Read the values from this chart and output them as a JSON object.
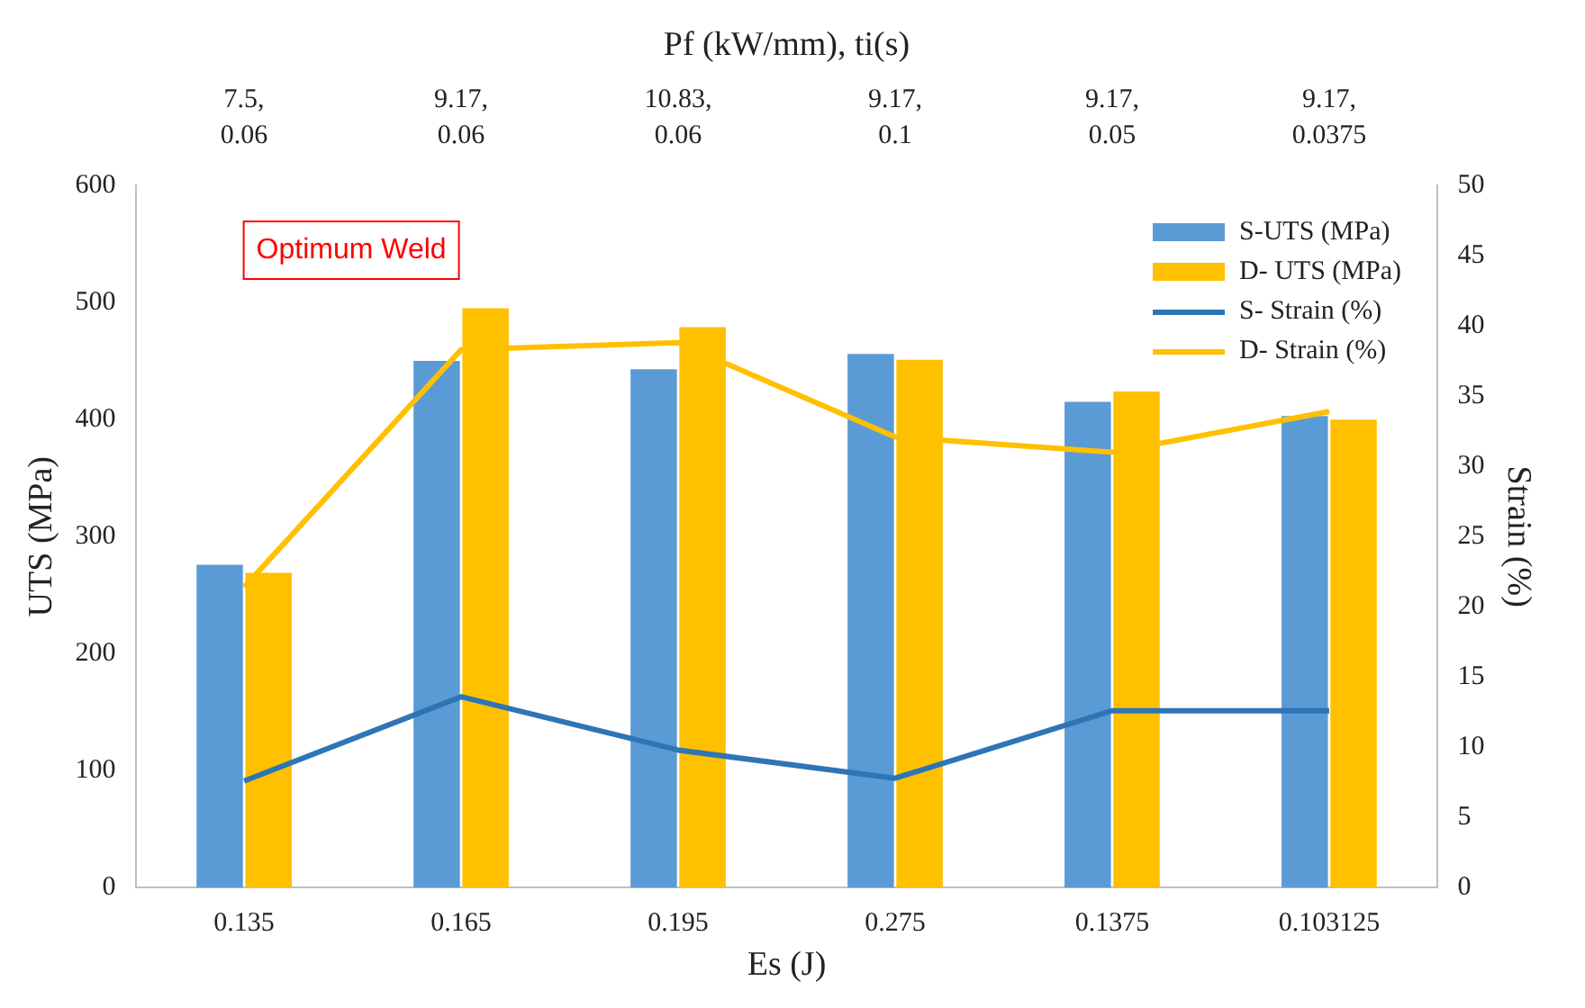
{
  "chart_data": {
    "type": "bar",
    "xlabel": "Es (J)",
    "ylabel": "UTS (MPa)",
    "y2label": "Strain (%)",
    "x2label": "Pf (kW/mm), ti(s)",
    "categories": [
      "0.135",
      "0.165",
      "0.195",
      "0.275",
      "0.1375",
      "0.103125"
    ],
    "series": [
      {
        "name": "S-UTS (MPa)",
        "color": "#5b9bd5",
        "values": [
          276,
          450,
          443,
          456,
          415,
          403
        ]
      },
      {
        "name": "D- UTS (MPa)",
        "color": "#ffc000",
        "values": [
          269,
          495,
          479,
          451,
          424,
          400
        ]
      },
      {
        "name": "S- Strain (%)",
        "type": "line",
        "axis": "y2",
        "color": "#2e75b6",
        "values": [
          7.6,
          13.6,
          9.8,
          7.8,
          12.6,
          12.6
        ]
      },
      {
        "name": "D- Strain (%)",
        "type": "line",
        "axis": "y2",
        "color": "#ffc000",
        "values": [
          21.4,
          38.3,
          38.8,
          32.1,
          31.0,
          33.9
        ]
      }
    ],
    "ylim": [
      0,
      600
    ],
    "yticks": [
      0,
      100,
      200,
      300,
      400,
      500,
      600
    ],
    "y2lim": [
      0,
      50
    ],
    "y2ticks": [
      0,
      5,
      10,
      15,
      20,
      25,
      30,
      35,
      40,
      45,
      50
    ],
    "annotations": [
      "7.5,\n0.06",
      "9.17,\n0.06",
      "10.83,\n0.06",
      "9.17,\n0.1",
      "9.17,\n0.05",
      "9.17,\n0.0375",
      "Optimum Weld"
    ],
    "grid": false,
    "legend": "top right",
    "marker": "none",
    "line_style": "solid"
  }
}
